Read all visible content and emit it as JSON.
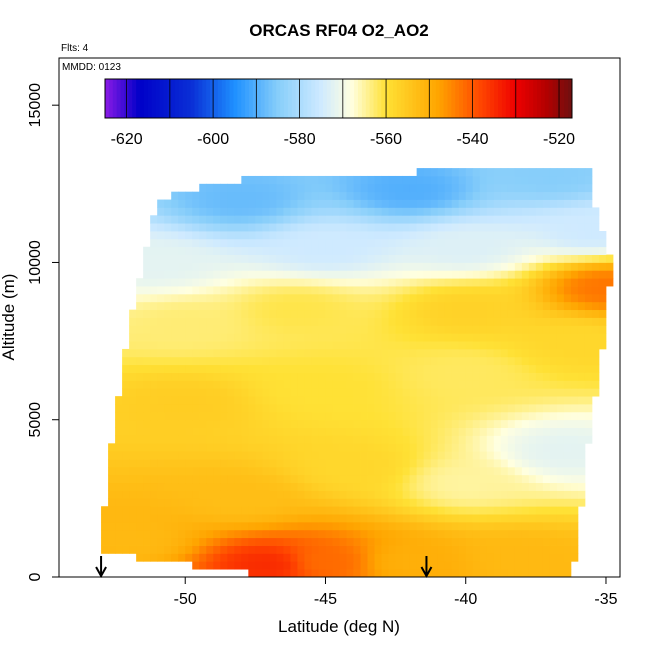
{
  "chart_data": {
    "type": "heatmap",
    "title": "ORCAS RF04 O2_AO2",
    "annotations": {
      "flights": "Flts: 4",
      "date": "MMDD: 0123"
    },
    "xlabel": "Latitude (deg N)",
    "ylabel": "Altitude (m)",
    "xlim": [
      -54.5,
      -34.5
    ],
    "ylim": [
      0,
      16500
    ],
    "x_ticks": [
      -50,
      -45,
      -40,
      -35
    ],
    "x_tick_labels": [
      "-50",
      "-45",
      "-40",
      "-35"
    ],
    "y_ticks": [
      0,
      5000,
      10000,
      15000
    ],
    "y_tick_labels": [
      "0",
      "5000",
      "10000",
      "15000"
    ],
    "colorbar": {
      "min": -625,
      "max": -517,
      "ticks": [
        -620,
        -600,
        -580,
        -560,
        -540,
        -520
      ],
      "tick_labels": [
        "-620",
        "-600",
        "-580",
        "-560",
        "-540",
        "-520"
      ],
      "stops": [
        {
          "value": -625,
          "color": "#8b1ae6"
        },
        {
          "value": -617,
          "color": "#0000c8"
        },
        {
          "value": -605,
          "color": "#0a2fd6"
        },
        {
          "value": -595,
          "color": "#1e90ff"
        },
        {
          "value": -585,
          "color": "#87cefa"
        },
        {
          "value": -575,
          "color": "#cfeaff"
        },
        {
          "value": -568,
          "color": "#ffffe0"
        },
        {
          "value": -560,
          "color": "#ffe135"
        },
        {
          "value": -548,
          "color": "#ffa500"
        },
        {
          "value": -538,
          "color": "#ff4500"
        },
        {
          "value": -530,
          "color": "#ee0000"
        },
        {
          "value": -523,
          "color": "#b40000"
        },
        {
          "value": -517,
          "color": "#6e1010"
        }
      ]
    },
    "domain_rows": [
      {
        "alt": 0,
        "lat_min": -46.8,
        "lat_max": -36.3
      },
      {
        "alt": 800,
        "lat_min": -53.0,
        "lat_max": -36.0
      },
      {
        "alt": 3000,
        "lat_min": -52.8,
        "lat_max": -35.8
      },
      {
        "alt": 5000,
        "lat_min": -52.5,
        "lat_max": -35.5
      },
      {
        "alt": 8000,
        "lat_min": -52.0,
        "lat_max": -35.0
      },
      {
        "alt": 10000,
        "lat_min": -51.5,
        "lat_max": -34.8
      },
      {
        "alt": 12000,
        "lat_min": -51.0,
        "lat_max": -35.5
      },
      {
        "alt": 12600,
        "lat_min": -48.5,
        "lat_max": -35.5
      },
      {
        "alt": 12900,
        "lat_min": -41.0,
        "lat_max": -35.5
      }
    ],
    "field_samples": [
      {
        "lat": -47,
        "alt": 400,
        "value": -535
      },
      {
        "lat": -45,
        "alt": 500,
        "value": -542
      },
      {
        "lat": -42,
        "alt": 500,
        "value": -550
      },
      {
        "lat": -38,
        "alt": 600,
        "value": -552
      },
      {
        "lat": -52,
        "alt": 1200,
        "value": -552
      },
      {
        "lat": -48,
        "alt": 2500,
        "value": -553
      },
      {
        "lat": -44,
        "alt": 3500,
        "value": -558
      },
      {
        "lat": -40,
        "alt": 3000,
        "value": -565
      },
      {
        "lat": -36.5,
        "alt": 4000,
        "value": -572
      },
      {
        "lat": -50,
        "alt": 5500,
        "value": -556
      },
      {
        "lat": -45,
        "alt": 6000,
        "value": -560
      },
      {
        "lat": -40,
        "alt": 6500,
        "value": -562
      },
      {
        "lat": -36,
        "alt": 7500,
        "value": -558
      },
      {
        "lat": -50,
        "alt": 8000,
        "value": -563
      },
      {
        "lat": -46,
        "alt": 8500,
        "value": -561
      },
      {
        "lat": -40,
        "alt": 8500,
        "value": -557
      },
      {
        "lat": -35,
        "alt": 9200,
        "value": -543
      },
      {
        "lat": -51,
        "alt": 10000,
        "value": -572
      },
      {
        "lat": -45,
        "alt": 10500,
        "value": -575
      },
      {
        "lat": -40,
        "alt": 10500,
        "value": -573
      },
      {
        "lat": -35.5,
        "alt": 11000,
        "value": -575
      },
      {
        "lat": -48,
        "alt": 12000,
        "value": -588
      },
      {
        "lat": -42,
        "alt": 12300,
        "value": -590
      },
      {
        "lat": -37,
        "alt": 12800,
        "value": -585
      }
    ],
    "markers": [
      {
        "type": "arrow-down",
        "lat": -53.0
      },
      {
        "type": "arrow-down",
        "lat": -41.4
      }
    ]
  }
}
